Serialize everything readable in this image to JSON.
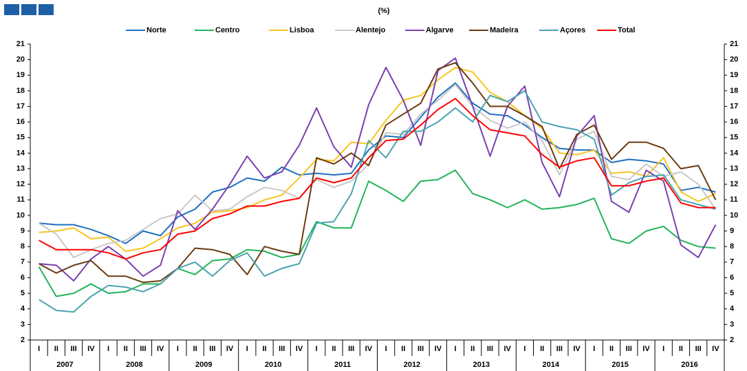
{
  "chart_data": {
    "type": "line",
    "subtitle": "(%)",
    "categories": [
      "I",
      "II",
      "III",
      "IV",
      "I",
      "II",
      "III",
      "IV",
      "I",
      "II",
      "III",
      "IV",
      "I",
      "II",
      "III",
      "IV",
      "I",
      "II",
      "III",
      "IV",
      "I",
      "II",
      "III",
      "IV",
      "I",
      "II",
      "III",
      "IV",
      "I",
      "II",
      "III",
      "IV",
      "I",
      "II",
      "III",
      "IV",
      "I",
      "II",
      "III",
      "IV"
    ],
    "years": [
      "2007",
      "2008",
      "2009",
      "2010",
      "2011",
      "2012",
      "2013",
      "2014",
      "2015",
      "2016"
    ],
    "ylim": [
      2,
      21
    ],
    "yticks": [
      2,
      3,
      4,
      5,
      6,
      7,
      8,
      9,
      10,
      11,
      12,
      13,
      14,
      15,
      16,
      17,
      18,
      19,
      20,
      21
    ],
    "series": [
      {
        "name": "Norte",
        "color": "#1f6fbf",
        "values": [
          9.5,
          9.4,
          9.4,
          9.1,
          8.7,
          8.2,
          9.0,
          8.7,
          9.9,
          10.4,
          11.5,
          11.8,
          12.4,
          12.2,
          13.1,
          12.6,
          12.7,
          12.6,
          12.7,
          14.2,
          15.1,
          15.0,
          16.3,
          17.6,
          18.5,
          17.2,
          16.5,
          16.4,
          15.8,
          15.0,
          14.3,
          14.2,
          14.2,
          13.4,
          13.6,
          13.5,
          13.3,
          11.6,
          11.8,
          11.5
        ]
      },
      {
        "name": "Centro",
        "color": "#22b35a",
        "values": [
          6.7,
          4.8,
          5.0,
          5.6,
          5.0,
          5.1,
          5.6,
          5.6,
          6.6,
          6.2,
          7.1,
          7.2,
          7.8,
          7.7,
          7.3,
          7.5,
          9.6,
          9.2,
          9.2,
          12.2,
          11.6,
          10.9,
          12.2,
          12.3,
          12.9,
          11.4,
          11.0,
          10.5,
          11.0,
          10.4,
          10.5,
          10.7,
          11.1,
          8.5,
          8.2,
          9.0,
          9.3,
          8.4,
          8.0,
          7.9
        ]
      },
      {
        "name": "Lisboa",
        "color": "#f7c51e",
        "values": [
          8.9,
          9.0,
          9.2,
          8.5,
          8.6,
          7.7,
          7.9,
          8.5,
          9.2,
          9.5,
          10.2,
          10.3,
          10.5,
          11.0,
          11.3,
          12.4,
          13.6,
          13.5,
          14.7,
          14.6,
          16.1,
          17.4,
          17.7,
          18.7,
          19.5,
          19.2,
          17.9,
          17.3,
          16.4,
          15.6,
          14.0,
          13.9,
          14.2,
          12.7,
          12.8,
          12.5,
          13.7,
          11.5,
          10.9,
          11.4
        ]
      },
      {
        "name": "Alentejo",
        "color": "#c8c8c8",
        "values": [
          9.5,
          8.8,
          7.3,
          7.8,
          8.2,
          8.4,
          9.1,
          9.8,
          10.1,
          11.3,
          10.3,
          10.4,
          11.2,
          11.8,
          11.6,
          11.1,
          12.3,
          11.8,
          12.2,
          13.3,
          15.3,
          15.2,
          16.5,
          17.4,
          18.4,
          17.0,
          16.1,
          15.6,
          16.0,
          14.8,
          12.6,
          14.9,
          15.4,
          12.5,
          12.3,
          13.3,
          12.5,
          12.8,
          12.0,
          10.4
        ]
      },
      {
        "name": "Algarve",
        "color": "#7b3fb0",
        "values": [
          6.9,
          6.8,
          5.8,
          7.2,
          8.0,
          7.2,
          6.1,
          6.8,
          10.3,
          9.1,
          10.4,
          12.0,
          13.8,
          12.4,
          12.8,
          14.5,
          16.9,
          14.4,
          13.1,
          17.1,
          19.5,
          17.4,
          14.5,
          19.3,
          20.1,
          17.0,
          13.8,
          17.0,
          18.3,
          13.4,
          11.2,
          15.1,
          16.4,
          10.9,
          10.2,
          12.9,
          12.2,
          8.1,
          7.3,
          9.4
        ]
      },
      {
        "name": "Madeira",
        "color": "#6b3a10",
        "values": [
          6.9,
          6.3,
          6.8,
          7.1,
          6.1,
          6.1,
          5.7,
          5.8,
          6.6,
          7.9,
          7.8,
          7.5,
          6.2,
          8.0,
          7.7,
          7.5,
          13.7,
          13.3,
          14.0,
          13.2,
          15.8,
          16.5,
          17.2,
          19.4,
          19.8,
          18.5,
          17.0,
          17.0,
          16.4,
          15.7,
          13.0,
          15.2,
          15.8,
          13.6,
          14.7,
          14.7,
          14.3,
          13.0,
          13.2,
          11.0
        ]
      },
      {
        "name": "Açores",
        "color": "#4aa3b0",
        "values": [
          4.6,
          3.9,
          3.8,
          4.8,
          5.5,
          5.4,
          5.1,
          5.6,
          6.6,
          7.0,
          6.1,
          7.1,
          7.6,
          6.1,
          6.6,
          6.9,
          9.5,
          9.6,
          11.4,
          14.8,
          13.7,
          15.4,
          15.4,
          16.0,
          16.9,
          16.0,
          17.7,
          17.3,
          18.0,
          16.0,
          15.7,
          15.5,
          14.9,
          11.3,
          12.1,
          12.5,
          12.6,
          11.0,
          10.7,
          10.4
        ]
      },
      {
        "name": "Total",
        "color": "#ff0000",
        "values": [
          8.4,
          7.8,
          7.8,
          7.8,
          7.6,
          7.2,
          7.6,
          7.8,
          8.8,
          9.0,
          9.8,
          10.1,
          10.6,
          10.6,
          10.9,
          11.1,
          12.4,
          12.1,
          12.4,
          13.7,
          14.8,
          14.9,
          15.8,
          16.8,
          17.5,
          16.4,
          15.5,
          15.3,
          15.1,
          13.9,
          13.1,
          13.5,
          13.7,
          11.9,
          11.9,
          12.2,
          12.4,
          10.8,
          10.5,
          10.5
        ]
      }
    ]
  }
}
